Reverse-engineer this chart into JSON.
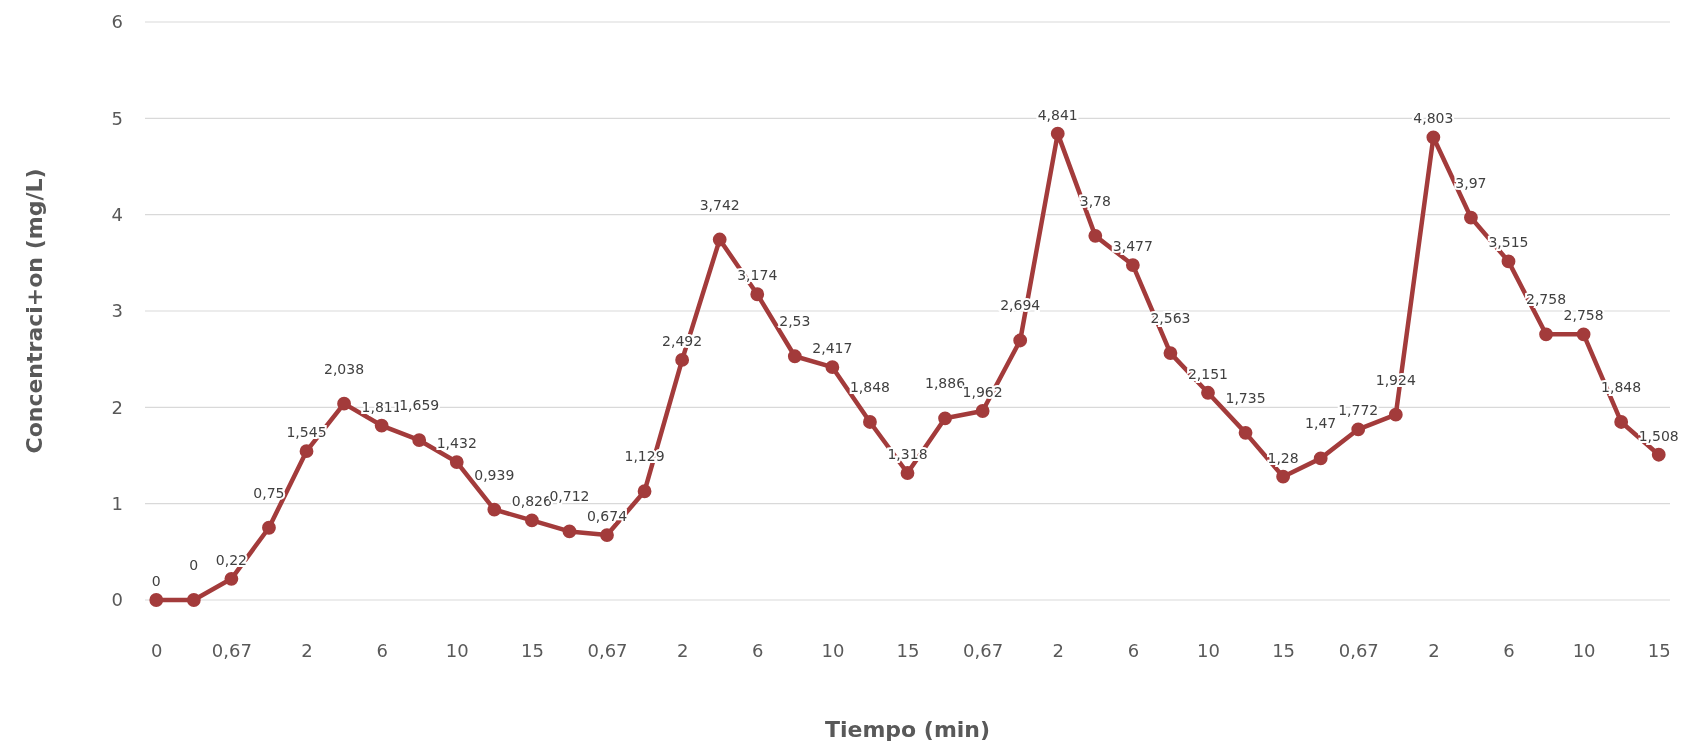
{
  "chart_data": {
    "type": "line",
    "xlabel": "Tiempo (min)",
    "ylabel": "Concentraci+on (mg/L)",
    "categories": [
      "0",
      null,
      "0,67",
      null,
      "2",
      null,
      "6",
      null,
      "10",
      null,
      "15",
      null,
      "0,67",
      null,
      "2",
      null,
      "6",
      null,
      "10",
      null,
      "15",
      null,
      "0,67",
      null,
      "2",
      null,
      "6",
      null,
      "10",
      null,
      "15",
      null,
      "0,67",
      null,
      "2",
      null,
      "6",
      null,
      "10",
      null,
      "15"
    ],
    "series": [
      {
        "color": "#a33b3b",
        "values": [
          0,
          0,
          0.22,
          0.75,
          1.545,
          2.038,
          1.811,
          1.659,
          1.432,
          0.939,
          0.826,
          0.712,
          0.674,
          1.129,
          2.492,
          3.742,
          3.174,
          2.53,
          2.417,
          1.848,
          1.318,
          1.886,
          1.962,
          2.694,
          4.841,
          3.78,
          3.477,
          2.563,
          2.151,
          1.735,
          1.28,
          1.47,
          1.772,
          1.924,
          4.803,
          3.97,
          3.515,
          2.758,
          2.758,
          1.848,
          1.508
        ],
        "value_labels": [
          "0",
          "0",
          "0,22",
          "0,75",
          "1,545",
          "2,038",
          "1,811",
          "1,659",
          "1,432",
          "0,939",
          "0,826",
          "0,712",
          "0,674",
          "1,129",
          "2,492",
          "3,742",
          "3,174",
          "2,53",
          "2,417",
          "1,848",
          "1,318",
          "1,886",
          "1,962",
          "2,694",
          "4,841",
          "3,78",
          "3,477",
          "2,563",
          "2,151",
          "1,735",
          "1,28",
          "1,47",
          "1,772",
          "1,924",
          "4,803",
          "3,97",
          "3,515",
          "2,758",
          "2,758",
          "1,848",
          "1,508"
        ]
      }
    ],
    "ylim": [
      0,
      6
    ],
    "yticks": [
      0,
      1,
      2,
      3,
      4,
      5,
      6
    ],
    "grid": "y",
    "marker": "circle",
    "line_style": "solid"
  }
}
